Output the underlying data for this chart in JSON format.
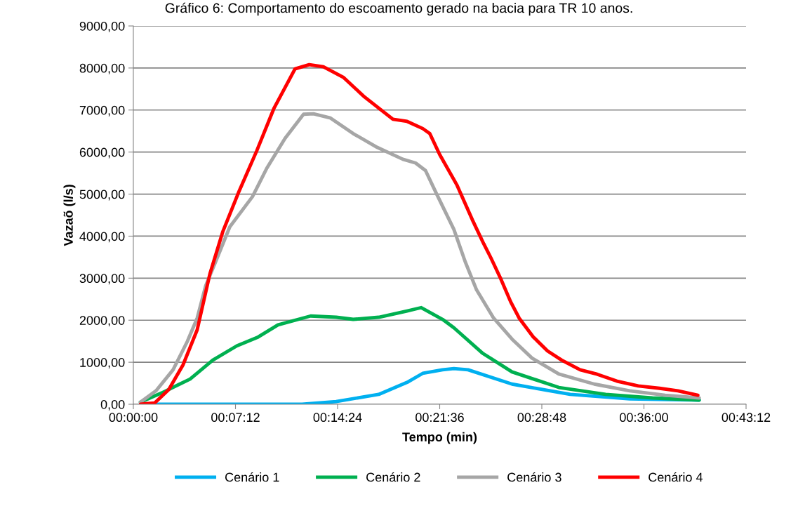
{
  "chart_data": {
    "type": "line",
    "title": "Gráfico 6: Comportamento do escoamento gerado na bacia para TR 10 anos.",
    "xlabel": "Tempo (min)",
    "ylabel": "Vazaõ (l/s)",
    "xlim": [
      0,
      43.2
    ],
    "xticks": [
      {
        "value": 0,
        "label": "00:00:00"
      },
      {
        "value": 7.2,
        "label": "00:07:12"
      },
      {
        "value": 14.4,
        "label": "00:14:24"
      },
      {
        "value": 21.6,
        "label": "00:21:36"
      },
      {
        "value": 28.8,
        "label": "00:28:48"
      },
      {
        "value": 36,
        "label": "00:36:00"
      },
      {
        "value": 43.2,
        "label": "00:43:12"
      }
    ],
    "ylim": [
      0,
      9000
    ],
    "yticks": [
      {
        "value": 0,
        "label": "0,00"
      },
      {
        "value": 1000,
        "label": "1000,00"
      },
      {
        "value": 2000,
        "label": "2000,00"
      },
      {
        "value": 3000,
        "label": "3000,00"
      },
      {
        "value": 4000,
        "label": "4000,00"
      },
      {
        "value": 5000,
        "label": "5000,00"
      },
      {
        "value": 6000,
        "label": "6000,00"
      },
      {
        "value": 7000,
        "label": "7000,00"
      },
      {
        "value": 8000,
        "label": "8000,00"
      },
      {
        "value": 9000,
        "label": "9000,00"
      }
    ],
    "grid": "y",
    "legend": "bottom",
    "marker": "none",
    "line_style": "solid",
    "series": [
      {
        "name": "Cenário 1",
        "color": "#00b0f0",
        "x": [
          0.5,
          5,
          10,
          11.9,
          14.3,
          17.3,
          19.3,
          20.4,
          21.8,
          22.6,
          23.6,
          26.7,
          30.8,
          35.0,
          39.9
        ],
        "values": [
          0,
          0,
          0,
          0,
          65,
          235,
          520,
          735,
          820,
          850,
          820,
          480,
          235,
          130,
          100
        ]
      },
      {
        "name": "Cenário 2",
        "color": "#00b050",
        "x": [
          0.5,
          2.0,
          4.0,
          5.6,
          7.3,
          8.8,
          10.2,
          12.5,
          14.3,
          15.5,
          17.3,
          19.3,
          20.3,
          21.8,
          22.6,
          24.6,
          26.7,
          30.0,
          33.3,
          36.6,
          39.9
        ],
        "values": [
          50,
          270,
          600,
          1050,
          1390,
          1600,
          1890,
          2100,
          2070,
          2020,
          2070,
          2220,
          2300,
          2020,
          1820,
          1220,
          770,
          400,
          235,
          150,
          100
        ]
      },
      {
        "name": "Cenário 3",
        "color": "#a6a6a6",
        "x": [
          0.5,
          1.6,
          2.8,
          3.8,
          4.5,
          5.1,
          5.8,
          6.8,
          8.4,
          9.4,
          10.7,
          12.0,
          12.7,
          13.9,
          15.5,
          17.2,
          19.0,
          19.9,
          20.6,
          21.4,
          22.6,
          23.4,
          24.2,
          25.4,
          26.7,
          28.1,
          30.0,
          32.5,
          35.0,
          37.5,
          39.9
        ],
        "values": [
          50,
          320,
          820,
          1490,
          2050,
          2820,
          3390,
          4220,
          4940,
          5610,
          6330,
          6900,
          6910,
          6810,
          6440,
          6110,
          5830,
          5740,
          5560,
          4990,
          4160,
          3390,
          2720,
          2050,
          1550,
          1100,
          720,
          480,
          320,
          215,
          150
        ]
      },
      {
        "name": "Cenário 4",
        "color": "#ff0000",
        "x": [
          0.5,
          1.5,
          2.5,
          3.5,
          4.5,
          5.4,
          6.3,
          7.4,
          8.7,
          9.9,
          11.4,
          12.4,
          13.4,
          14.8,
          16.3,
          18.3,
          19.3,
          20.4,
          20.9,
          21.6,
          22.8,
          23.9,
          24.7,
          25.2,
          25.9,
          26.6,
          27.2,
          28.2,
          29.2,
          30.2,
          31.5,
          32.7,
          34.1,
          35.6,
          37.1,
          38.4,
          39.8
        ],
        "values": [
          0,
          30,
          350,
          935,
          1770,
          3105,
          4100,
          5025,
          6030,
          7030,
          7980,
          8080,
          8030,
          7780,
          7310,
          6780,
          6730,
          6560,
          6440,
          5940,
          5225,
          4390,
          3820,
          3490,
          2990,
          2440,
          2050,
          1600,
          1270,
          1050,
          820,
          715,
          550,
          435,
          380,
          320,
          215
        ]
      }
    ]
  }
}
